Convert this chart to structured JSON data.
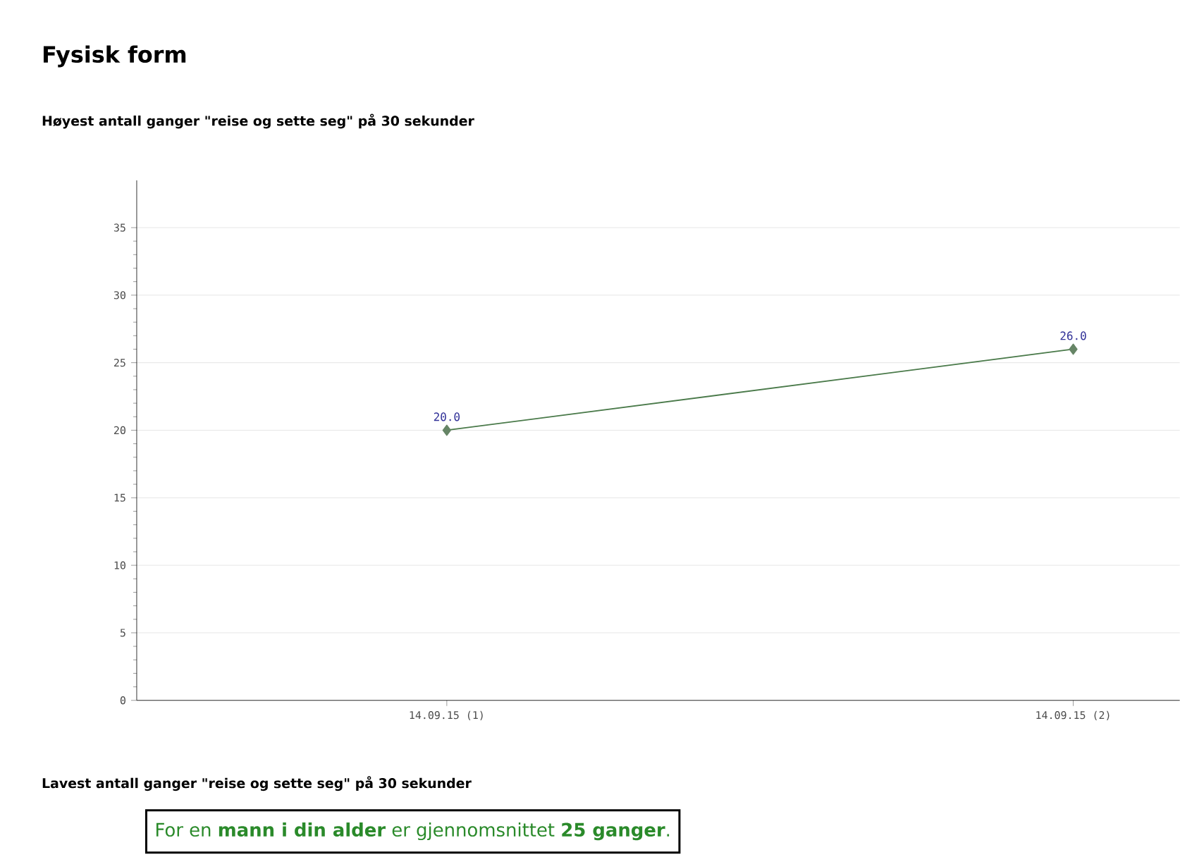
{
  "chart_data": {
    "type": "line",
    "title": "Fysisk form",
    "subtitle": "Høyest antall ganger \"reise og sette seg\" på 30 sekunder",
    "categories": [
      "14.09.15 (1)",
      "14.09.15 (2)"
    ],
    "series": [
      {
        "color": "#4a7a4a",
        "values": [
          20,
          26
        ],
        "value_labels": [
          "20.0",
          "26.0"
        ]
      }
    ],
    "ylim": [
      0,
      38.5
    ],
    "yticks": [
      0,
      5,
      10,
      15,
      20,
      25,
      30,
      35
    ],
    "grid": "y",
    "marker": "diamond",
    "line_style": "solid",
    "annotations": [
      "Lavest antall ganger \"reise og sette seg\" på 30 sekunder",
      "For en **mann i din alder** er gjennomsnittet **25 ganger**."
    ]
  }
}
